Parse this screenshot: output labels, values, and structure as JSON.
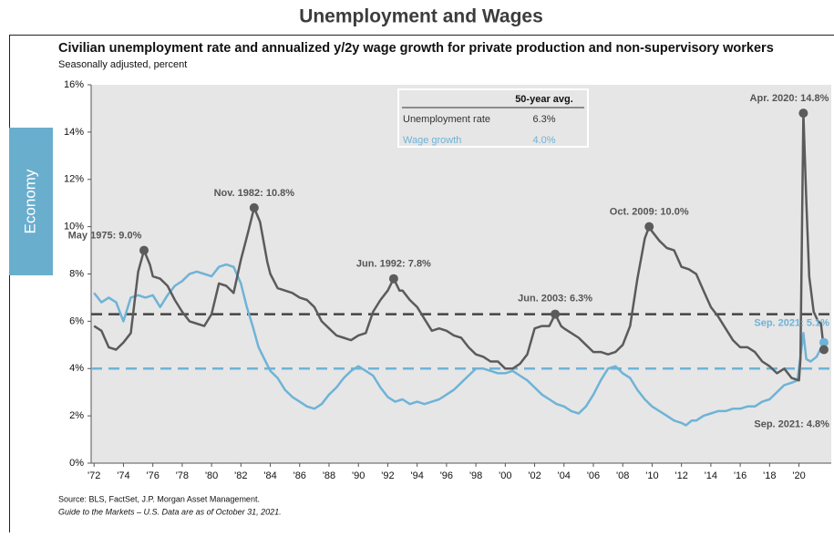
{
  "page_title": "Unemployment and Wages",
  "side_tab": "Economy",
  "source": [
    "Source: BLS, FactSet, J.P. Morgan Asset Management.",
    "Guide to the Markets – U.S. Data are as of October 31, 2021."
  ],
  "chart_data": {
    "type": "line",
    "title": "Civilian unemployment rate and annualized y/2y wage growth for private production and non-supervisory workers",
    "subtitle": "Seasonally adjusted, percent",
    "average_header": "50-year avg.",
    "xlim": [
      1971.8,
      2022.2
    ],
    "ylim": [
      0,
      16
    ],
    "xticks": [
      {
        "value": 1972,
        "label": "'72"
      },
      {
        "value": 1974,
        "label": "'74"
      },
      {
        "value": 1976,
        "label": "'76"
      },
      {
        "value": 1978,
        "label": "'78"
      },
      {
        "value": 1980,
        "label": "'80"
      },
      {
        "value": 1982,
        "label": "'82"
      },
      {
        "value": 1984,
        "label": "'84"
      },
      {
        "value": 1986,
        "label": "'86"
      },
      {
        "value": 1988,
        "label": "'88"
      },
      {
        "value": 1990,
        "label": "'90"
      },
      {
        "value": 1992,
        "label": "'92"
      },
      {
        "value": 1994,
        "label": "'94"
      },
      {
        "value": 1996,
        "label": "'96"
      },
      {
        "value": 1998,
        "label": "'98"
      },
      {
        "value": 2000,
        "label": "'00"
      },
      {
        "value": 2002,
        "label": "'02"
      },
      {
        "value": 2004,
        "label": "'04"
      },
      {
        "value": 2006,
        "label": "'06"
      },
      {
        "value": 2008,
        "label": "'08"
      },
      {
        "value": 2010,
        "label": "'10"
      },
      {
        "value": 2012,
        "label": "'12"
      },
      {
        "value": 2014,
        "label": "'14"
      },
      {
        "value": 2016,
        "label": "'16"
      },
      {
        "value": 2018,
        "label": "'18"
      },
      {
        "value": 2020,
        "label": "'20"
      }
    ],
    "yticks": [
      {
        "value": 0,
        "label": "0%"
      },
      {
        "value": 2,
        "label": "2%"
      },
      {
        "value": 4,
        "label": "4%"
      },
      {
        "value": 6,
        "label": "6%"
      },
      {
        "value": 8,
        "label": "8%"
      },
      {
        "value": 10,
        "label": "10%"
      },
      {
        "value": 12,
        "label": "12%"
      },
      {
        "value": 14,
        "label": "14%"
      },
      {
        "value": 16,
        "label": "16%"
      }
    ],
    "series": [
      {
        "name": "Unemployment rate",
        "color": "#5b5b5b",
        "average": 6.3,
        "average_label": "6.3%",
        "x": [
          1972.0,
          1972.5,
          1973.0,
          1973.5,
          1974.0,
          1974.5,
          1975.0,
          1975.4,
          1975.8,
          1976.0,
          1976.5,
          1977.0,
          1977.5,
          1978.0,
          1978.5,
          1979.0,
          1979.5,
          1980.0,
          1980.5,
          1981.0,
          1981.5,
          1982.0,
          1982.5,
          1982.9,
          1983.3,
          1983.8,
          1984.0,
          1984.5,
          1985.0,
          1985.5,
          1986.0,
          1986.5,
          1987.0,
          1987.5,
          1988.0,
          1988.5,
          1989.0,
          1989.5,
          1990.0,
          1990.5,
          1991.0,
          1991.5,
          1992.0,
          1992.4,
          1992.8,
          1993.0,
          1993.5,
          1994.0,
          1994.5,
          1995.0,
          1995.5,
          1996.0,
          1996.5,
          1997.0,
          1997.5,
          1998.0,
          1998.5,
          1999.0,
          1999.5,
          2000.0,
          2000.5,
          2001.0,
          2001.5,
          2002.0,
          2002.5,
          2003.0,
          2003.4,
          2003.8,
          2004.0,
          2004.5,
          2005.0,
          2005.5,
          2006.0,
          2006.5,
          2007.0,
          2007.5,
          2008.0,
          2008.5,
          2009.0,
          2009.5,
          2009.8,
          2010.0,
          2010.5,
          2011.0,
          2011.5,
          2012.0,
          2012.5,
          2013.0,
          2013.5,
          2014.0,
          2014.5,
          2015.0,
          2015.5,
          2016.0,
          2016.5,
          2017.0,
          2017.5,
          2018.0,
          2018.5,
          2019.0,
          2019.5,
          2020.0,
          2020.1,
          2020.3,
          2020.5,
          2020.7,
          2021.0,
          2021.3,
          2021.5,
          2021.7
        ],
        "values": [
          5.8,
          5.6,
          4.9,
          4.8,
          5.1,
          5.5,
          8.1,
          9.0,
          8.4,
          7.9,
          7.8,
          7.5,
          6.9,
          6.4,
          6.0,
          5.9,
          5.8,
          6.3,
          7.6,
          7.5,
          7.2,
          8.6,
          9.8,
          10.8,
          10.2,
          8.5,
          8.0,
          7.4,
          7.3,
          7.2,
          7.0,
          6.9,
          6.6,
          6.0,
          5.7,
          5.4,
          5.3,
          5.2,
          5.4,
          5.5,
          6.4,
          6.9,
          7.3,
          7.8,
          7.3,
          7.3,
          6.9,
          6.6,
          6.1,
          5.6,
          5.7,
          5.6,
          5.4,
          5.3,
          4.9,
          4.6,
          4.5,
          4.3,
          4.3,
          4.0,
          4.0,
          4.2,
          4.6,
          5.7,
          5.8,
          5.8,
          6.3,
          5.8,
          5.7,
          5.5,
          5.3,
          5.0,
          4.7,
          4.7,
          4.6,
          4.7,
          5.0,
          5.8,
          7.8,
          9.5,
          10.0,
          9.8,
          9.4,
          9.1,
          9.0,
          8.3,
          8.2,
          8.0,
          7.3,
          6.6,
          6.2,
          5.7,
          5.2,
          4.9,
          4.9,
          4.7,
          4.3,
          4.1,
          3.8,
          4.0,
          3.6,
          3.5,
          4.4,
          14.8,
          11.1,
          7.9,
          6.4,
          6.0,
          5.9,
          4.8
        ]
      },
      {
        "name": "Wage growth",
        "color": "#6fb3d6",
        "average": 4.0,
        "average_label": "4.0%",
        "x": [
          1972.0,
          1972.5,
          1973.0,
          1973.5,
          1974.0,
          1974.5,
          1975.0,
          1975.5,
          1976.0,
          1976.5,
          1977.0,
          1977.5,
          1978.0,
          1978.5,
          1979.0,
          1979.5,
          1980.0,
          1980.5,
          1981.0,
          1981.5,
          1982.0,
          1982.4,
          1982.8,
          1983.2,
          1983.6,
          1984.0,
          1984.5,
          1985.0,
          1985.5,
          1986.0,
          1986.5,
          1987.0,
          1987.5,
          1988.0,
          1988.5,
          1989.0,
          1989.5,
          1990.0,
          1990.5,
          1991.0,
          1991.5,
          1992.0,
          1992.5,
          1993.0,
          1993.5,
          1994.0,
          1994.5,
          1995.0,
          1995.5,
          1996.0,
          1996.5,
          1997.0,
          1997.5,
          1998.0,
          1998.5,
          1999.0,
          1999.5,
          2000.0,
          2000.5,
          2001.0,
          2001.5,
          2002.0,
          2002.5,
          2003.0,
          2003.5,
          2004.0,
          2004.5,
          2005.0,
          2005.5,
          2006.0,
          2006.5,
          2007.0,
          2007.5,
          2008.0,
          2008.5,
          2009.0,
          2009.5,
          2010.0,
          2010.5,
          2011.0,
          2011.5,
          2012.0,
          2012.3,
          2012.7,
          2013.0,
          2013.5,
          2014.0,
          2014.5,
          2015.0,
          2015.5,
          2016.0,
          2016.5,
          2017.0,
          2017.5,
          2018.0,
          2018.5,
          2019.0,
          2019.5,
          2019.9,
          2020.3,
          2020.5,
          2020.8,
          2021.2,
          2021.7
        ],
        "values": [
          7.2,
          6.8,
          7.0,
          6.8,
          6.0,
          7.0,
          7.1,
          7.0,
          7.1,
          6.6,
          7.1,
          7.5,
          7.7,
          8.0,
          8.1,
          8.0,
          7.9,
          8.3,
          8.4,
          8.3,
          7.6,
          6.6,
          5.8,
          4.9,
          4.4,
          3.9,
          3.6,
          3.1,
          2.8,
          2.6,
          2.4,
          2.3,
          2.5,
          2.9,
          3.2,
          3.6,
          3.9,
          4.1,
          3.9,
          3.7,
          3.2,
          2.8,
          2.6,
          2.7,
          2.5,
          2.6,
          2.5,
          2.6,
          2.7,
          2.9,
          3.1,
          3.4,
          3.7,
          4.0,
          4.0,
          3.9,
          3.8,
          3.8,
          3.9,
          3.7,
          3.5,
          3.2,
          2.9,
          2.7,
          2.5,
          2.4,
          2.2,
          2.1,
          2.4,
          2.9,
          3.5,
          4.0,
          4.1,
          3.8,
          3.6,
          3.1,
          2.7,
          2.4,
          2.2,
          2.0,
          1.8,
          1.7,
          1.6,
          1.8,
          1.8,
          2.0,
          2.1,
          2.2,
          2.2,
          2.3,
          2.3,
          2.4,
          2.4,
          2.6,
          2.7,
          3.0,
          3.3,
          3.4,
          3.5,
          5.5,
          4.4,
          4.3,
          4.5,
          5.1
        ]
      }
    ],
    "annotations": [
      {
        "text": "May 1975: 9.0%",
        "x": 1975.4,
        "y": 9.0,
        "series": 0
      },
      {
        "text": "Nov. 1982: 10.8%",
        "x": 1982.9,
        "y": 10.8,
        "series": 0
      },
      {
        "text": "Jun. 1992: 7.8%",
        "x": 1992.4,
        "y": 7.8,
        "series": 0
      },
      {
        "text": "Jun. 2003: 6.3%",
        "x": 2003.4,
        "y": 6.3,
        "series": 0
      },
      {
        "text": "Oct. 2009: 10.0%",
        "x": 2009.8,
        "y": 10.0,
        "series": 0
      },
      {
        "text": "Apr. 2020: 14.8%",
        "x": 2020.3,
        "y": 14.8,
        "series": 0
      },
      {
        "text": "Sep. 2021: 5.1%",
        "x": 2021.7,
        "y": 5.1,
        "series": 1
      },
      {
        "text": "Sep. 2021: 4.8%",
        "x": 2021.7,
        "y": 4.8,
        "series": 0
      }
    ]
  }
}
